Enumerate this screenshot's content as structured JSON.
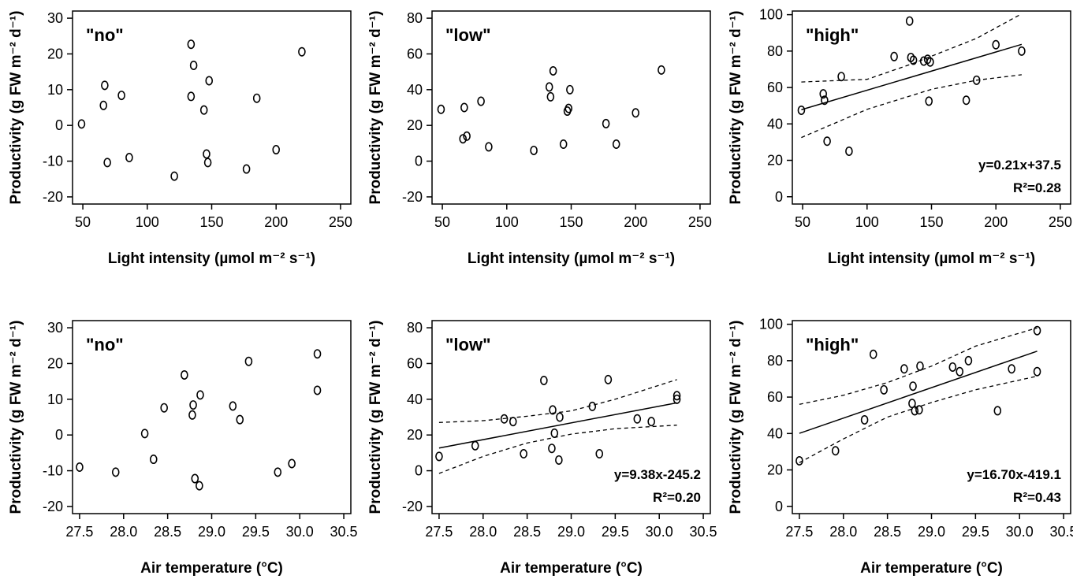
{
  "chart_data": [
    {
      "type": "scatter",
      "panel_label": "\"no\"",
      "xlabel": "Light intensity (µmol m⁻² s⁻¹)",
      "ylabel": "Productivity (g FW m⁻² d⁻¹)",
      "xlim": [
        42,
        258
      ],
      "ylim": [
        -22,
        32
      ],
      "xticks": [
        "50",
        "100",
        "150",
        "200",
        "250"
      ],
      "xtick_values": [
        50,
        100,
        150,
        200,
        250
      ],
      "yticks": [
        "-20",
        "-10",
        "0",
        "10",
        "20",
        "30"
      ],
      "ytick_values": [
        -20,
        -10,
        0,
        10,
        20,
        30
      ],
      "points": [
        [
          49,
          0.4
        ],
        [
          66,
          5.6
        ],
        [
          67,
          11.2
        ],
        [
          69,
          -10.4
        ],
        [
          80,
          8.4
        ],
        [
          86,
          -9.0
        ],
        [
          121,
          -14.2
        ],
        [
          134,
          8.1
        ],
        [
          134,
          22.7
        ],
        [
          136,
          16.8
        ],
        [
          144,
          4.3
        ],
        [
          146,
          -8.0
        ],
        [
          147,
          -10.4
        ],
        [
          148,
          12.5
        ],
        [
          177,
          -12.2
        ],
        [
          185,
          7.6
        ],
        [
          200,
          -6.8
        ],
        [
          220,
          20.6
        ]
      ],
      "fit": null,
      "ci_lower": null,
      "ci_upper": null,
      "equation": "",
      "r2": ""
    },
    {
      "type": "scatter",
      "panel_label": "\"low\"",
      "xlabel": "Light intensity (µmol m⁻² s⁻¹)",
      "ylabel": "Productivity (g FW m⁻² d⁻¹)",
      "xlim": [
        42,
        258
      ],
      "ylim": [
        -24,
        84
      ],
      "xticks": [
        "50",
        "100",
        "150",
        "200",
        "250"
      ],
      "xtick_values": [
        50,
        100,
        150,
        200,
        250
      ],
      "yticks": [
        "-20",
        "0",
        "20",
        "40",
        "60",
        "80"
      ],
      "ytick_values": [
        -20,
        0,
        20,
        40,
        60,
        80
      ],
      "points": [
        [
          49,
          29
        ],
        [
          66,
          12.5
        ],
        [
          67,
          30
        ],
        [
          69,
          14
        ],
        [
          80,
          33.5
        ],
        [
          86,
          8
        ],
        [
          121,
          6
        ],
        [
          133,
          41.5
        ],
        [
          134,
          36
        ],
        [
          136,
          50.5
        ],
        [
          144,
          9.5
        ],
        [
          147,
          28
        ],
        [
          148,
          29.5
        ],
        [
          149,
          40
        ],
        [
          177,
          21
        ],
        [
          185,
          9.5
        ],
        [
          200,
          27
        ],
        [
          220,
          51
        ]
      ],
      "fit": null,
      "ci_lower": null,
      "ci_upper": null,
      "equation": "",
      "r2": ""
    },
    {
      "type": "scatter",
      "panel_label": "\"high\"",
      "xlabel": "Light intensity (µmol m⁻² s⁻¹)",
      "ylabel": "Productivity (g FW m⁻² d⁻¹)",
      "xlim": [
        42,
        258
      ],
      "ylim": [
        -4,
        102
      ],
      "xticks": [
        "50",
        "100",
        "150",
        "200",
        "250"
      ],
      "xtick_values": [
        50,
        100,
        150,
        200,
        250
      ],
      "yticks": [
        "0",
        "20",
        "40",
        "60",
        "80",
        "100"
      ],
      "ytick_values": [
        0,
        20,
        40,
        60,
        80,
        100
      ],
      "points": [
        [
          49,
          47.5
        ],
        [
          66,
          56.5
        ],
        [
          67,
          53
        ],
        [
          69,
          30.5
        ],
        [
          80,
          66
        ],
        [
          86,
          25
        ],
        [
          121,
          77
        ],
        [
          133,
          96.5
        ],
        [
          134,
          76.5
        ],
        [
          136,
          75
        ],
        [
          144,
          74.5
        ],
        [
          147,
          75.5
        ],
        [
          148,
          52.5
        ],
        [
          149,
          74
        ],
        [
          177,
          53
        ],
        [
          185,
          64
        ],
        [
          200,
          83.5
        ],
        [
          220,
          80
        ]
      ],
      "fit": [
        [
          49,
          47.8
        ],
        [
          220,
          83.7
        ]
      ],
      "ci_lower": [
        [
          49,
          32.5
        ],
        [
          100,
          48
        ],
        [
          150,
          59
        ],
        [
          185,
          64
        ],
        [
          220,
          67
        ]
      ],
      "ci_upper": [
        [
          49,
          63
        ],
        [
          100,
          64.5
        ],
        [
          135,
          73
        ],
        [
          185,
          87
        ],
        [
          220,
          100.5
        ]
      ],
      "equation": "y=0.21x+37.5",
      "r2": "R²=0.28"
    },
    {
      "type": "scatter",
      "panel_label": "\"no\"",
      "xlabel": "Air temperature (°C)",
      "ylabel": "Productivity (g FW m⁻² d⁻¹)",
      "xlim": [
        27.42,
        30.58
      ],
      "ylim": [
        -22,
        32
      ],
      "xticks": [
        "27.5",
        "28.0",
        "28.5",
        "29.0",
        "29.5",
        "30.0",
        "30.5"
      ],
      "xtick_values": [
        27.5,
        28.0,
        28.5,
        29.0,
        29.5,
        30.0,
        30.5
      ],
      "yticks": [
        "-20",
        "-10",
        "0",
        "10",
        "20",
        "30"
      ],
      "ytick_values": [
        -20,
        -10,
        0,
        10,
        20,
        30
      ],
      "points": [
        [
          27.5,
          -9.0
        ],
        [
          27.91,
          -10.4
        ],
        [
          28.24,
          0.4
        ],
        [
          28.34,
          -6.8
        ],
        [
          28.46,
          7.6
        ],
        [
          28.69,
          16.8
        ],
        [
          28.78,
          5.6
        ],
        [
          28.79,
          8.4
        ],
        [
          28.81,
          -12.2
        ],
        [
          28.86,
          -14.2
        ],
        [
          28.87,
          11.2
        ],
        [
          29.24,
          8.1
        ],
        [
          29.32,
          4.3
        ],
        [
          29.42,
          20.6
        ],
        [
          29.75,
          -10.4
        ],
        [
          29.91,
          -8.0
        ],
        [
          30.2,
          22.7
        ],
        [
          30.2,
          12.5
        ]
      ],
      "fit": null,
      "ci_lower": null,
      "ci_upper": null,
      "equation": "",
      "r2": ""
    },
    {
      "type": "scatter",
      "panel_label": "\"low\"",
      "xlabel": "Air temperature (°C)",
      "ylabel": "Productivity (g FW m⁻² d⁻¹)",
      "xlim": [
        27.42,
        30.58
      ],
      "ylim": [
        -24,
        84
      ],
      "xticks": [
        "27.5",
        "28.0",
        "28.5",
        "29.0",
        "29.5",
        "30.0",
        "30.5"
      ],
      "xtick_values": [
        27.5,
        28.0,
        28.5,
        29.0,
        29.5,
        30.0,
        30.5
      ],
      "yticks": [
        "-20",
        "0",
        "20",
        "40",
        "60",
        "80"
      ],
      "ytick_values": [
        -20,
        0,
        20,
        40,
        60,
        80
      ],
      "points": [
        [
          27.5,
          8
        ],
        [
          27.91,
          14
        ],
        [
          28.24,
          29
        ],
        [
          28.34,
          27.5
        ],
        [
          28.46,
          9.5
        ],
        [
          28.69,
          50.5
        ],
        [
          28.78,
          12.5
        ],
        [
          28.79,
          34
        ],
        [
          28.81,
          21
        ],
        [
          28.86,
          6
        ],
        [
          28.87,
          30
        ],
        [
          29.24,
          36
        ],
        [
          29.32,
          9.5
        ],
        [
          29.42,
          51
        ],
        [
          29.75,
          29
        ],
        [
          29.91,
          27.5
        ],
        [
          30.2,
          42
        ],
        [
          30.2,
          40
        ]
      ],
      "fit": [
        [
          27.5,
          12.7
        ],
        [
          30.2,
          38.0
        ]
      ],
      "ci_lower": [
        [
          27.5,
          -1.5
        ],
        [
          28.0,
          8
        ],
        [
          28.5,
          15.5
        ],
        [
          29.0,
          20.5
        ],
        [
          29.5,
          23.5
        ],
        [
          30.2,
          25.5
        ]
      ],
      "ci_upper": [
        [
          27.5,
          27
        ],
        [
          28.0,
          28
        ],
        [
          28.5,
          30.5
        ],
        [
          29.0,
          33.5
        ],
        [
          29.5,
          40
        ],
        [
          30.2,
          51
        ]
      ],
      "equation": "y=9.38x-245.2",
      "r2": "R²=0.20"
    },
    {
      "type": "scatter",
      "panel_label": "\"high\"",
      "xlabel": "Air temperature (°C)",
      "ylabel": "Productivity (g FW m⁻² d⁻¹)",
      "xlim": [
        27.42,
        30.58
      ],
      "ylim": [
        -4,
        102
      ],
      "xticks": [
        "27.5",
        "28.0",
        "28.5",
        "29.0",
        "29.5",
        "30.0",
        "30.5"
      ],
      "xtick_values": [
        27.5,
        28.0,
        28.5,
        29.0,
        29.5,
        30.0,
        30.5
      ],
      "yticks": [
        "0",
        "20",
        "40",
        "60",
        "80",
        "100"
      ],
      "ytick_values": [
        0,
        20,
        40,
        60,
        80,
        100
      ],
      "points": [
        [
          27.5,
          25
        ],
        [
          27.91,
          30.5
        ],
        [
          28.24,
          47.5
        ],
        [
          28.34,
          83.5
        ],
        [
          28.46,
          64
        ],
        [
          28.69,
          75.5
        ],
        [
          28.78,
          56.5
        ],
        [
          28.79,
          66
        ],
        [
          28.81,
          52.5
        ],
        [
          28.86,
          53
        ],
        [
          28.87,
          77
        ],
        [
          29.24,
          76.5
        ],
        [
          29.32,
          74
        ],
        [
          29.42,
          80
        ],
        [
          29.75,
          52.5
        ],
        [
          29.91,
          75.5
        ],
        [
          30.2,
          96.5
        ],
        [
          30.2,
          74
        ]
      ],
      "fit": [
        [
          27.5,
          40.1
        ],
        [
          30.2,
          85.2
        ]
      ],
      "ci_lower": [
        [
          27.5,
          24
        ],
        [
          28.0,
          37
        ],
        [
          28.5,
          49
        ],
        [
          29.0,
          57
        ],
        [
          29.5,
          64
        ],
        [
          30.2,
          71.5
        ]
      ],
      "ci_upper": [
        [
          27.5,
          56
        ],
        [
          28.0,
          61
        ],
        [
          28.5,
          68
        ],
        [
          29.0,
          77
        ],
        [
          29.5,
          88
        ],
        [
          30.2,
          98
        ]
      ],
      "equation": "y=16.70x-419.1",
      "r2": "R²=0.43"
    }
  ]
}
